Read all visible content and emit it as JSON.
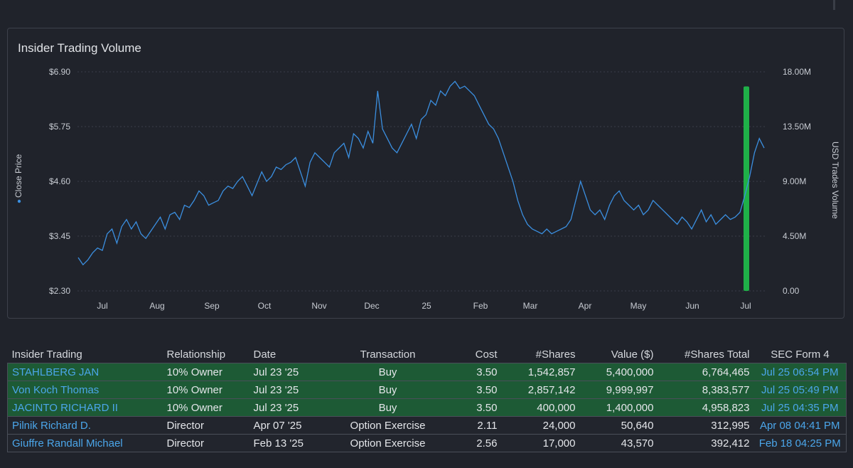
{
  "chart": {
    "title": "Insider Trading Volume",
    "left_axis_label": "Close Price",
    "right_axis_label": "USD Trades Volume",
    "left_ticks": [
      "$6.90",
      "$5.75",
      "$4.60",
      "$3.45",
      "$2.30"
    ],
    "right_ticks": [
      "18.00M",
      "13.50M",
      "9.00M",
      "4.50M",
      "0.00"
    ],
    "x_ticks": [
      "Jul",
      "Aug",
      "Sep",
      "Oct",
      "Nov",
      "Dec",
      "25",
      "Feb",
      "Mar",
      "Apr",
      "May",
      "Jun",
      "Jul"
    ]
  },
  "chart_data": {
    "type": "line",
    "title": "Insider Trading Volume",
    "ylabel": "Close Price",
    "y2label": "USD Trades Volume",
    "ylim": [
      2.3,
      6.9
    ],
    "y2lim": [
      0,
      18000000
    ],
    "x_ticks": [
      "Jul",
      "Aug",
      "Sep",
      "Oct",
      "Nov",
      "Dec",
      "25",
      "Feb",
      "Mar",
      "Apr",
      "May",
      "Jun",
      "Jul"
    ],
    "colors": {
      "price_line": "#3b8fe0",
      "volume_bar": "#1fb048"
    },
    "series": [
      {
        "name": "Close Price",
        "axis": "left",
        "values": [
          3.0,
          2.85,
          2.95,
          3.1,
          3.2,
          3.15,
          3.5,
          3.6,
          3.3,
          3.65,
          3.8,
          3.6,
          3.75,
          3.5,
          3.4,
          3.55,
          3.7,
          3.85,
          3.6,
          3.9,
          3.95,
          3.8,
          4.1,
          4.05,
          4.2,
          4.4,
          4.3,
          4.1,
          4.15,
          4.2,
          4.4,
          4.5,
          4.45,
          4.6,
          4.7,
          4.5,
          4.3,
          4.55,
          4.8,
          4.6,
          4.7,
          4.9,
          4.85,
          4.95,
          5.0,
          5.1,
          4.8,
          4.5,
          5.0,
          5.2,
          5.1,
          5.0,
          4.9,
          5.2,
          5.3,
          5.4,
          5.1,
          5.6,
          5.5,
          5.3,
          5.65,
          5.4,
          6.5,
          5.7,
          5.5,
          5.3,
          5.2,
          5.4,
          5.6,
          5.8,
          5.5,
          5.9,
          6.0,
          6.3,
          6.2,
          6.5,
          6.4,
          6.6,
          6.7,
          6.55,
          6.6,
          6.5,
          6.4,
          6.2,
          6.0,
          5.8,
          5.7,
          5.5,
          5.2,
          4.9,
          4.6,
          4.2,
          3.9,
          3.7,
          3.6,
          3.55,
          3.5,
          3.6,
          3.5,
          3.55,
          3.6,
          3.65,
          3.8,
          4.2,
          4.6,
          4.3,
          4.0,
          3.9,
          4.0,
          3.8,
          4.1,
          4.3,
          4.4,
          4.2,
          4.1,
          4.0,
          4.1,
          3.9,
          4.0,
          4.2,
          4.1,
          4.0,
          3.9,
          3.8,
          3.7,
          3.85,
          3.75,
          3.6,
          3.8,
          4.0,
          3.75,
          3.9,
          3.7,
          3.8,
          3.9,
          3.8,
          3.85,
          3.95,
          4.3,
          4.7,
          5.2,
          5.5,
          5.3
        ]
      },
      {
        "name": "USD Trades Volume",
        "axis": "right",
        "type": "bar",
        "points": [
          {
            "date": "Jul 23 '25",
            "value": 16800000
          }
        ]
      }
    ]
  },
  "table": {
    "headers": [
      "Insider Trading",
      "Relationship",
      "Date",
      "Transaction",
      "Cost",
      "#Shares",
      "Value ($)",
      "#Shares Total",
      "SEC Form 4"
    ],
    "rows": [
      {
        "name": "STAHLBERG JAN",
        "relationship": "10% Owner",
        "date": "Jul 23 '25",
        "transaction": "Buy",
        "cost": "3.50",
        "shares": "1,542,857",
        "value": "5,400,000",
        "shares_total": "6,764,465",
        "sec_form": "Jul 25 06:54 PM",
        "kind": "buy"
      },
      {
        "name": "Von Koch Thomas",
        "relationship": "10% Owner",
        "date": "Jul 23 '25",
        "transaction": "Buy",
        "cost": "3.50",
        "shares": "2,857,142",
        "value": "9,999,997",
        "shares_total": "8,383,577",
        "sec_form": "Jul 25 05:49 PM",
        "kind": "buy"
      },
      {
        "name": "JACINTO RICHARD II",
        "relationship": "10% Owner",
        "date": "Jul 23 '25",
        "transaction": "Buy",
        "cost": "3.50",
        "shares": "400,000",
        "value": "1,400,000",
        "shares_total": "4,958,823",
        "sec_form": "Jul 25 04:35 PM",
        "kind": "buy"
      },
      {
        "name": "Pilnik Richard D.",
        "relationship": "Director",
        "date": "Apr 07 '25",
        "transaction": "Option Exercise",
        "cost": "2.11",
        "shares": "24,000",
        "value": "50,640",
        "shares_total": "312,995",
        "sec_form": "Apr 08 04:41 PM",
        "kind": "other"
      },
      {
        "name": "Giuffre Randall Michael",
        "relationship": "Director",
        "date": "Feb 13 '25",
        "transaction": "Option Exercise",
        "cost": "2.56",
        "shares": "17,000",
        "value": "43,570",
        "shares_total": "392,412",
        "sec_form": "Feb 18 04:25 PM",
        "kind": "other"
      }
    ]
  }
}
